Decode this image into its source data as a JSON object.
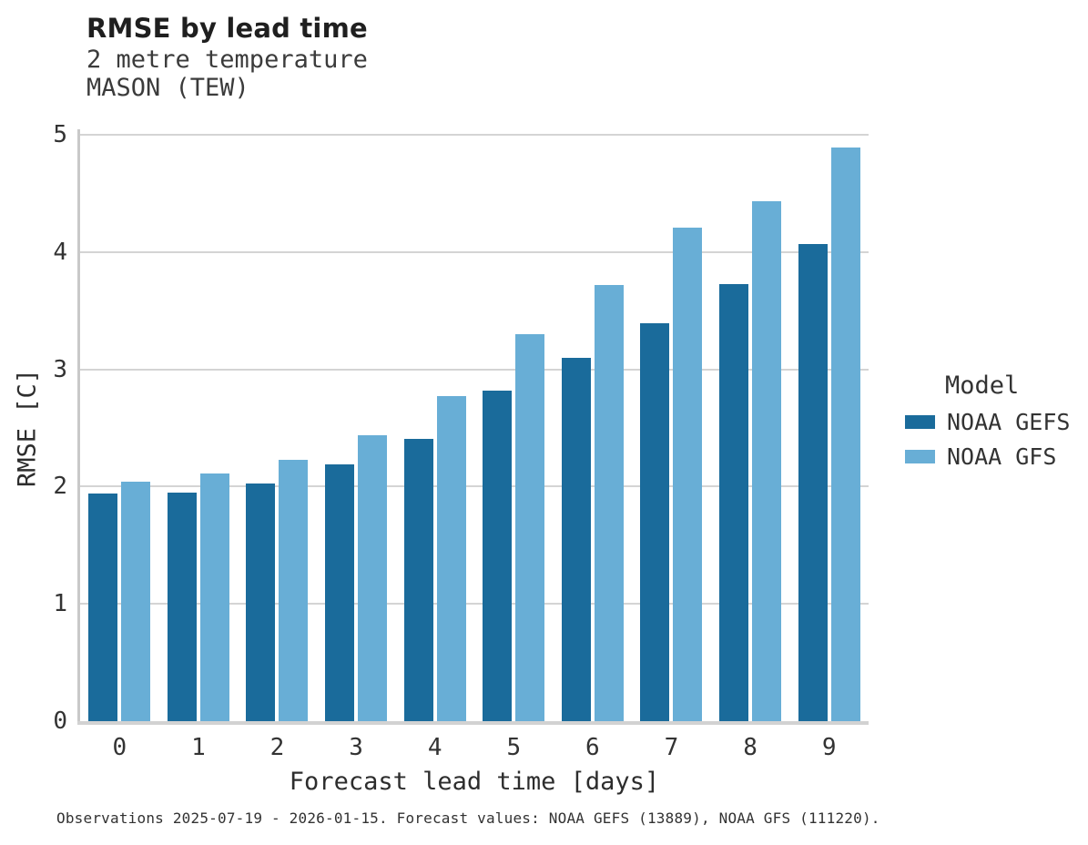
{
  "chart_data": {
    "type": "bar",
    "title": "RMSE by lead time",
    "subtitle": "2 metre temperature",
    "subtitle2": "MASON (TEW)",
    "xlabel": "Forecast lead time [days]",
    "ylabel": "RMSE [C]",
    "ylim": [
      0,
      5
    ],
    "yticks": [
      0,
      1,
      2,
      3,
      4,
      5
    ],
    "grid": "horizontal",
    "legend_title": "Model",
    "legend_position": "right",
    "categories": [
      "0",
      "1",
      "2",
      "3",
      "4",
      "5",
      "6",
      "7",
      "8",
      "9"
    ],
    "series": [
      {
        "name": "NOAA GEFS",
        "color": "#1a6b9b",
        "values": [
          1.94,
          1.95,
          2.03,
          2.19,
          2.41,
          2.82,
          3.1,
          3.39,
          3.73,
          4.07
        ]
      },
      {
        "name": "NOAA GFS",
        "color": "#68aed6",
        "values": [
          2.04,
          2.11,
          2.23,
          2.44,
          2.77,
          3.3,
          3.72,
          4.21,
          4.43,
          4.89
        ]
      }
    ],
    "caption": "Observations 2025-07-19 - 2026-01-15. Forecast values: NOAA GEFS (13889), NOAA GFS (111220)."
  }
}
